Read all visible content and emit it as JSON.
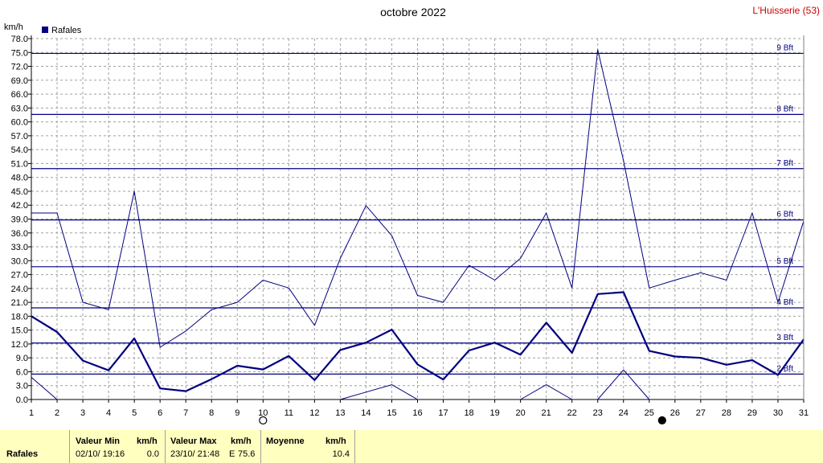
{
  "header": {
    "title": "octobre 2022",
    "station": "L'Huisserie (53)",
    "unit": "km/h",
    "legend_label": "Rafales"
  },
  "chart_data": {
    "type": "line",
    "title": "octobre 2022",
    "ylabel": "km/h",
    "ylim": [
      0,
      78
    ],
    "xlim": [
      1,
      31
    ],
    "grid": true,
    "legend": "top-left",
    "categories": [
      1,
      2,
      3,
      4,
      5,
      6,
      7,
      8,
      9,
      10,
      11,
      12,
      13,
      14,
      15,
      16,
      17,
      18,
      19,
      20,
      21,
      22,
      23,
      24,
      25,
      26,
      27,
      28,
      29,
      30,
      31
    ],
    "y_ticks": [
      "0.0",
      "3.0",
      "6.0",
      "9.0",
      "12.0",
      "15.0",
      "18.0",
      "21.0",
      "24.0",
      "27.0",
      "30.0",
      "33.0",
      "36.0",
      "39.0",
      "42.0",
      "45.0",
      "48.0",
      "51.0",
      "54.0",
      "57.0",
      "60.0",
      "63.0",
      "66.0",
      "69.0",
      "72.0",
      "75.0",
      "78.0"
    ],
    "beaufort": [
      {
        "label": "2 Bft",
        "value": 5.5
      },
      {
        "label": "3 Bft",
        "value": 12.2
      },
      {
        "label": "4 Bft",
        "value": 19.8
      },
      {
        "label": "5 Bft",
        "value": 28.7
      },
      {
        "label": "6 Bft",
        "value": 38.8
      },
      {
        "label": "7 Bft",
        "value": 49.9
      },
      {
        "label": "8 Bft",
        "value": 61.6
      },
      {
        "label": "9 Bft",
        "value": 74.8
      }
    ],
    "series": [
      {
        "name": "Rafales",
        "role": "max",
        "values": [
          40.3,
          40.3,
          21.0,
          19.4,
          45.0,
          11.3,
          14.8,
          19.4,
          21.0,
          25.8,
          24.1,
          16.0,
          30.5,
          41.9,
          35.4,
          22.5,
          21.0,
          29.0,
          25.8,
          30.5,
          40.3,
          24.1,
          75.6,
          51.6,
          24.1,
          25.8,
          27.4,
          25.8,
          40.3,
          21.0,
          38.6
        ]
      },
      {
        "role": "mean",
        "values": [
          18.0,
          14.6,
          8.4,
          6.3,
          13.2,
          2.4,
          1.8,
          4.4,
          7.3,
          6.5,
          9.4,
          4.2,
          10.7,
          12.3,
          15.1,
          7.6,
          4.3,
          10.6,
          12.3,
          9.7,
          16.6,
          10.1,
          22.8,
          23.2,
          10.5,
          9.3,
          9.0,
          7.5,
          8.5,
          5.3,
          13.0
        ]
      },
      {
        "role": "min",
        "values": [
          4.8,
          0.0,
          null,
          null,
          null,
          null,
          null,
          null,
          null,
          null,
          null,
          null,
          0.0,
          1.6,
          3.2,
          0.0,
          null,
          null,
          null,
          0.0,
          3.2,
          0.0,
          0.0,
          6.4,
          0.0,
          null,
          null,
          null,
          null,
          null,
          null
        ]
      }
    ],
    "moon_phases": [
      {
        "day": 10,
        "phase": "full"
      },
      {
        "day": 25.5,
        "phase": "new"
      }
    ]
  },
  "footer": {
    "row_label": "Rafales",
    "min_header": "Valeur Min",
    "min_unit": "km/h",
    "min_date": "02/10/  19:16",
    "min_value": "0.0",
    "max_header": "Valeur Max",
    "max_unit": "km/h",
    "max_date": "23/10/  21:48",
    "max_dir": "E",
    "max_value": "75.6",
    "mean_header": "Moyenne",
    "mean_unit": "km/h",
    "mean_value": "10.4"
  },
  "colors": {
    "series": "#000080",
    "grid": "#a0a0a0",
    "station": "#cc0000",
    "footer_bg": "#ffffc0"
  }
}
